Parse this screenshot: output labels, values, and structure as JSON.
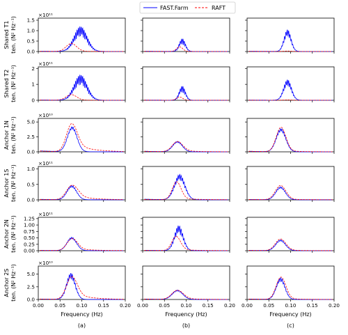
{
  "chart_data": {
    "type": "line",
    "legend": {
      "placement": "top-center",
      "entries": [
        "FAST.Farm",
        "RAFT"
      ]
    },
    "series_styles": [
      {
        "name": "FAST.Farm",
        "color": "#0000ff",
        "dash": "solid"
      },
      {
        "name": "RAFT",
        "color": "#ff0000",
        "dash": "dashed"
      }
    ],
    "xlim": [
      0,
      0.2
    ],
    "x_ticks": [
      "0.00",
      "0.05",
      "0.10",
      "0.15",
      "0.20"
    ],
    "xlabel": "Frequency (Hz)",
    "columns": [
      "(a)",
      "(b)",
      "(c)"
    ],
    "rows": [
      {
        "name": "Shared T1",
        "ylabel_line1": "Shared T1",
        "ylabel_line2": "ten. (N² Hz⁻¹)",
        "multiplier": "×10¹¹",
        "scale": 100000000000.0,
        "ylim": [
          0,
          1.6
        ],
        "yticks": [
          "0.0",
          "0.5",
          "1.0",
          "1.5"
        ],
        "ytick_values": [
          0,
          0.5,
          1.0,
          1.5
        ]
      },
      {
        "name": "Shared T2",
        "ylabel_line1": "Shared T2",
        "ylabel_line2": "ten. (N² Hz⁻¹)",
        "multiplier": "×10¹¹",
        "scale": 100000000000.0,
        "ylim": [
          0,
          2.1
        ],
        "yticks": [
          "0",
          "1",
          "2"
        ],
        "ytick_values": [
          0,
          1,
          2
        ]
      },
      {
        "name": "Anchor 1N",
        "ylabel_line1": "Anchor 1N",
        "ylabel_line2": "ten. (N² Hz⁻¹)",
        "multiplier": "×10¹⁰",
        "scale": 10000000000.0,
        "ylim": [
          0,
          5.6
        ],
        "yticks": [
          "0.0",
          "2.5",
          "5.0"
        ],
        "ytick_values": [
          0,
          2.5,
          5.0
        ]
      },
      {
        "name": "Anchor 1S",
        "ylabel_line1": "Anchor 1S",
        "ylabel_line2": "ten. (N² Hz⁻¹)",
        "multiplier": "×10¹¹",
        "scale": 100000000000.0,
        "ylim": [
          0,
          1.08
        ],
        "yticks": [
          "0.0",
          "0.5",
          "1.0"
        ],
        "ytick_values": [
          0,
          0.5,
          1.0
        ]
      },
      {
        "name": "Anchor 2N",
        "ylabel_line1": "Anchor 2N",
        "ylabel_line2": "ten. (N² Hz⁻¹)",
        "multiplier": "×10¹¹",
        "scale": 100000000000.0,
        "ylim": [
          0,
          1.3
        ],
        "yticks": [
          "0.00",
          "0.25",
          "0.50",
          "0.75",
          "1.00",
          "1.25"
        ],
        "ytick_values": [
          0,
          0.25,
          0.5,
          0.75,
          1.0,
          1.25
        ]
      },
      {
        "name": "Anchor 2S",
        "ylabel_line1": "Anchor 2S",
        "ylabel_line2": "ten. (N² Hz⁻¹)",
        "multiplier": "×10¹⁰",
        "scale": 10000000000.0,
        "ylim": [
          0,
          6.6
        ],
        "yticks": [
          "0.0",
          "2.5",
          "5.0"
        ],
        "ytick_values": [
          0,
          2.5,
          5.0
        ]
      }
    ],
    "panels": [
      [
        {
          "ff": {
            "c": 0.097,
            "a": 1.2,
            "w": 0.015,
            "rip": 0.45,
            "f": 320,
            "b": 0.02
          },
          "raft": {
            "c": 0.076,
            "a": 0.38,
            "w": 0.012,
            "tail": 0.03,
            "b": 0.01
          }
        },
        {
          "ff": {
            "c": 0.091,
            "a": 0.62,
            "w": 0.007,
            "rip": 0.5,
            "f": 330,
            "b": 0.02
          },
          "raft": {
            "c": 0.085,
            "a": 0.22,
            "w": 0.007,
            "tail": 0.01,
            "b": 0.01
          }
        },
        {
          "ff": {
            "c": 0.093,
            "a": 1.05,
            "w": 0.008,
            "rip": 0.35,
            "f": 320,
            "b": 0.02
          },
          "raft": {
            "c": 0.093,
            "a": 0.02,
            "w": 0.008,
            "tail": 0.0,
            "b": 0.01
          }
        }
      ],
      [
        {
          "ff": {
            "c": 0.097,
            "a": 1.6,
            "w": 0.015,
            "rip": 0.45,
            "f": 320,
            "b": 0.03
          },
          "raft": {
            "c": 0.076,
            "a": 0.35,
            "w": 0.012,
            "tail": 0.03,
            "b": 0.02
          }
        },
        {
          "ff": {
            "c": 0.091,
            "a": 0.9,
            "w": 0.007,
            "rip": 0.5,
            "f": 330,
            "b": 0.02
          },
          "raft": {
            "c": 0.085,
            "a": 0.2,
            "w": 0.007,
            "tail": 0.01,
            "b": 0.01
          }
        },
        {
          "ff": {
            "c": 0.093,
            "a": 1.3,
            "w": 0.009,
            "rip": 0.35,
            "f": 320,
            "b": 0.02
          },
          "raft": {
            "c": 0.093,
            "a": 0.02,
            "w": 0.009,
            "tail": 0.0,
            "b": 0.01
          }
        }
      ],
      [
        {
          "ff": {
            "c": 0.078,
            "a": 4.2,
            "w": 0.011,
            "rip": 0.12,
            "f": 280,
            "b": 0.35
          },
          "raft": {
            "c": 0.077,
            "a": 4.7,
            "w": 0.012,
            "tail": 0.35,
            "b": 0.3
          }
        },
        {
          "ff": {
            "c": 0.08,
            "a": 1.75,
            "w": 0.011,
            "rip": 0.15,
            "f": 280,
            "b": 0.2
          },
          "raft": {
            "c": 0.08,
            "a": 1.7,
            "w": 0.012,
            "tail": 0.15,
            "b": 0.2
          }
        },
        {
          "ff": {
            "c": 0.078,
            "a": 3.9,
            "w": 0.011,
            "rip": 0.15,
            "f": 280,
            "b": 0.2
          },
          "raft": {
            "c": 0.078,
            "a": 4.1,
            "w": 0.011,
            "tail": 0.05,
            "b": 0.2
          }
        }
      ],
      [
        {
          "ff": {
            "c": 0.077,
            "a": 0.46,
            "w": 0.011,
            "rip": 0.15,
            "f": 280,
            "b": 0.03
          },
          "raft": {
            "c": 0.078,
            "a": 0.47,
            "w": 0.013,
            "tail": 0.35,
            "b": 0.02
          }
        },
        {
          "ff": {
            "c": 0.085,
            "a": 0.82,
            "w": 0.012,
            "rip": 0.25,
            "f": 300,
            "b": 0.04
          },
          "raft": {
            "c": 0.078,
            "a": 0.58,
            "w": 0.01,
            "tail": 0.1,
            "b": 0.02
          }
        },
        {
          "ff": {
            "c": 0.077,
            "a": 0.42,
            "w": 0.011,
            "rip": 0.15,
            "f": 280,
            "b": 0.02
          },
          "raft": {
            "c": 0.077,
            "a": 0.46,
            "w": 0.012,
            "tail": 0.05,
            "b": 0.02
          }
        }
      ],
      [
        {
          "ff": {
            "c": 0.077,
            "a": 0.52,
            "w": 0.011,
            "rip": 0.15,
            "f": 280,
            "b": 0.02
          },
          "raft": {
            "c": 0.078,
            "a": 0.47,
            "w": 0.012,
            "tail": 0.2,
            "b": 0.02
          }
        },
        {
          "ff": {
            "c": 0.083,
            "a": 0.98,
            "w": 0.01,
            "rip": 0.35,
            "f": 300,
            "b": 0.03
          },
          "raft": {
            "c": 0.077,
            "a": 0.55,
            "w": 0.01,
            "tail": 0.1,
            "b": 0.02
          }
        },
        {
          "ff": {
            "c": 0.077,
            "a": 0.42,
            "w": 0.011,
            "rip": 0.15,
            "f": 280,
            "b": 0.02
          },
          "raft": {
            "c": 0.077,
            "a": 0.45,
            "w": 0.012,
            "tail": 0.05,
            "b": 0.02
          }
        }
      ],
      [
        {
          "ff": {
            "c": 0.075,
            "a": 5.2,
            "w": 0.01,
            "rip": 0.25,
            "f": 300,
            "b": 0.2
          },
          "raft": {
            "c": 0.077,
            "a": 4.5,
            "w": 0.012,
            "tail": 0.3,
            "b": 0.2
          }
        },
        {
          "ff": {
            "c": 0.08,
            "a": 1.85,
            "w": 0.012,
            "rip": 0.15,
            "f": 280,
            "b": 0.2
          },
          "raft": {
            "c": 0.08,
            "a": 1.8,
            "w": 0.013,
            "tail": 0.15,
            "b": 0.2
          }
        },
        {
          "ff": {
            "c": 0.077,
            "a": 4.3,
            "w": 0.01,
            "rip": 0.2,
            "f": 290,
            "b": 0.2
          },
          "raft": {
            "c": 0.078,
            "a": 4.4,
            "w": 0.011,
            "tail": 0.05,
            "b": 0.2
          }
        }
      ]
    ]
  }
}
